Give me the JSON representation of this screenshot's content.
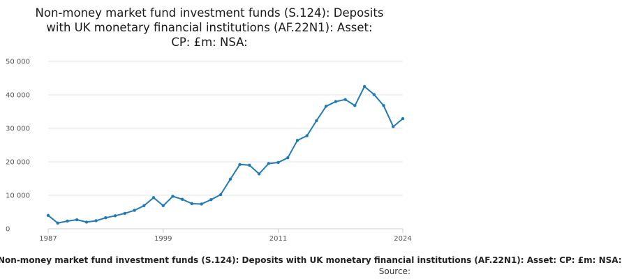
{
  "chart_data": {
    "type": "line",
    "title_lines": [
      "Non-money market fund investment funds (S.124): Deposits",
      "with UK monetary financial institutions (AF.22N1): Asset:",
      "CP: £m: NSA:"
    ],
    "xlabel": "",
    "ylabel": "",
    "x": [
      1987,
      1988,
      1989,
      1990,
      1991,
      1992,
      1993,
      1994,
      1995,
      1996,
      1997,
      1998,
      1999,
      2000,
      2001,
      2002,
      2003,
      2004,
      2005,
      2006,
      2007,
      2008,
      2009,
      2010,
      2011,
      2012,
      2013,
      2014,
      2015,
      2016,
      2017,
      2018,
      2019,
      2020,
      2021,
      2022,
      2023,
      2024
    ],
    "series": [
      {
        "name": "Non-money market fund investment funds (S.124): Deposits with UK monetary financial institutions (AF.22N1): Asset: CP: £m: NSA:",
        "color": "#1f7ab8",
        "values": [
          4000,
          1700,
          2300,
          2700,
          2000,
          2400,
          3300,
          3900,
          4600,
          5500,
          6900,
          9300,
          6900,
          9700,
          8800,
          7500,
          7400,
          8700,
          10200,
          14800,
          19200,
          19000,
          16400,
          19500,
          19800,
          21200,
          26400,
          27800,
          32300,
          36600,
          38000,
          38600,
          36800,
          42500,
          40100,
          36800,
          30500,
          32900
        ]
      }
    ],
    "xlim": [
      1987,
      2024
    ],
    "ylim": [
      0,
      50000
    ],
    "y_ticks": [
      0,
      10000,
      20000,
      30000,
      40000,
      50000
    ],
    "y_tick_labels": [
      "0",
      "10 000",
      "20 000",
      "30 000",
      "40 000",
      "50 000"
    ],
    "x_ticks": [
      1987,
      1999,
      2011,
      2024
    ],
    "x_tick_labels": [
      "1987",
      "1999",
      "2011",
      "2024"
    ],
    "grid": true,
    "legend_position": "bottom",
    "source_label": "Source:"
  }
}
